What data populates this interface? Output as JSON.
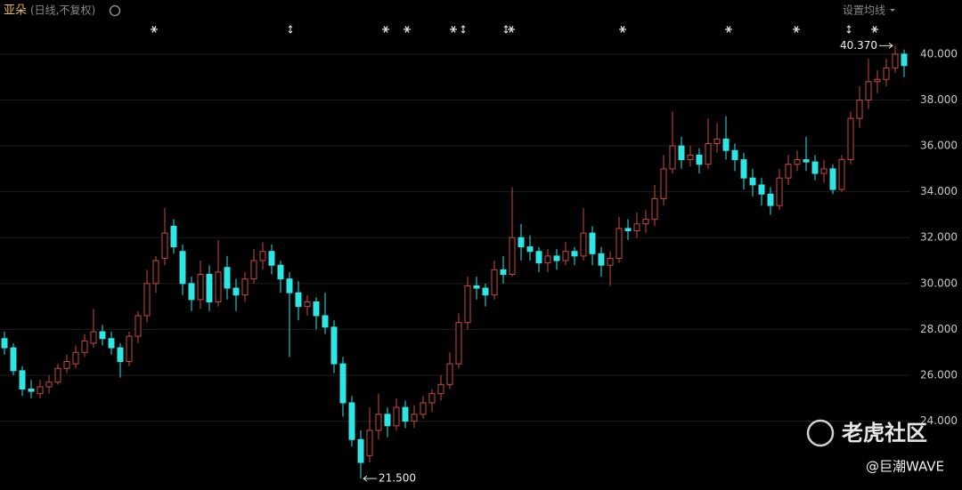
{
  "header": {
    "symbol": "亚朵",
    "mode": "(日线,不复权)",
    "ma_button": "设置均线"
  },
  "watermark": {
    "brand": "老虎社区",
    "author": "@巨潮WAVE"
  },
  "chart_data": {
    "type": "candlestick",
    "up_color": "#c9493f",
    "down_color": "#2ee6e6",
    "grid": true,
    "ylim": [
      21.0,
      42.36
    ],
    "yticks": [
      {
        "value": 24,
        "label": "24.000"
      },
      {
        "value": 26,
        "label": "26.000"
      },
      {
        "value": 28,
        "label": "28.000"
      },
      {
        "value": 30,
        "label": "30.000"
      },
      {
        "value": 32,
        "label": "32.000"
      },
      {
        "value": 34,
        "label": "34.000"
      },
      {
        "value": 36,
        "label": "36.000"
      },
      {
        "value": 38,
        "label": "38.000"
      },
      {
        "value": 40,
        "label": "40.000"
      }
    ],
    "high_marker": {
      "value": 40.37,
      "label": "40.370"
    },
    "low_marker": {
      "value": 21.5,
      "label": "21.500"
    },
    "ohlc": [
      [
        27.6,
        27.9,
        26.9,
        27.2
      ],
      [
        27.2,
        27.4,
        26.0,
        26.2
      ],
      [
        26.2,
        26.4,
        25.1,
        25.4
      ],
      [
        25.4,
        25.8,
        25.0,
        25.3
      ],
      [
        25.2,
        25.8,
        25.0,
        25.5
      ],
      [
        25.5,
        26.0,
        25.2,
        25.7
      ],
      [
        25.7,
        26.5,
        25.6,
        26.3
      ],
      [
        26.3,
        26.9,
        26.1,
        26.6
      ],
      [
        26.5,
        27.3,
        26.3,
        27.0
      ],
      [
        27.0,
        27.8,
        26.8,
        27.5
      ],
      [
        27.4,
        28.9,
        27.2,
        27.9
      ],
      [
        27.9,
        28.2,
        27.3,
        27.6
      ],
      [
        27.6,
        27.9,
        26.9,
        27.2
      ],
      [
        27.2,
        27.4,
        25.9,
        26.6
      ],
      [
        26.6,
        27.9,
        26.4,
        27.7
      ],
      [
        27.7,
        28.8,
        27.4,
        28.6
      ],
      [
        28.6,
        30.6,
        28.3,
        30.0
      ],
      [
        30.0,
        31.2,
        29.6,
        31.0
      ],
      [
        31.1,
        33.3,
        30.8,
        32.2
      ],
      [
        32.5,
        32.8,
        31.3,
        31.6
      ],
      [
        31.4,
        31.7,
        29.5,
        30.0
      ],
      [
        30.0,
        30.3,
        28.8,
        29.3
      ],
      [
        29.3,
        31.0,
        28.9,
        30.4
      ],
      [
        30.4,
        30.8,
        28.8,
        29.2
      ],
      [
        29.2,
        31.9,
        29.0,
        30.5
      ],
      [
        30.7,
        31.2,
        29.3,
        29.8
      ],
      [
        29.8,
        30.2,
        28.8,
        29.5
      ],
      [
        29.5,
        30.5,
        29.2,
        30.2
      ],
      [
        30.2,
        31.5,
        30.0,
        31.0
      ],
      [
        31.0,
        31.8,
        30.6,
        31.4
      ],
      [
        31.4,
        31.7,
        30.4,
        30.8
      ],
      [
        30.8,
        31.0,
        29.6,
        30.2
      ],
      [
        30.2,
        30.5,
        26.8,
        29.6
      ],
      [
        29.6,
        30.1,
        28.4,
        29.0
      ],
      [
        29.0,
        29.5,
        28.6,
        29.2
      ],
      [
        29.2,
        29.4,
        28.0,
        28.6
      ],
      [
        28.6,
        29.6,
        27.8,
        28.1
      ],
      [
        28.1,
        28.4,
        26.1,
        26.5
      ],
      [
        26.5,
        26.8,
        24.2,
        24.8
      ],
      [
        24.8,
        25.1,
        22.9,
        23.2
      ],
      [
        23.2,
        23.6,
        21.5,
        22.2
      ],
      [
        22.5,
        24.6,
        22.2,
        23.6
      ],
      [
        23.6,
        25.2,
        23.2,
        24.3
      ],
      [
        24.3,
        24.6,
        23.3,
        23.8
      ],
      [
        23.8,
        25.0,
        23.6,
        24.6
      ],
      [
        24.6,
        24.9,
        23.7,
        24.0
      ],
      [
        24.0,
        24.7,
        23.7,
        24.3
      ],
      [
        24.3,
        25.1,
        24.1,
        24.8
      ],
      [
        24.8,
        25.4,
        24.4,
        25.2
      ],
      [
        25.2,
        26.0,
        24.9,
        25.6
      ],
      [
        25.6,
        27.0,
        25.4,
        26.5
      ],
      [
        26.5,
        28.7,
        26.3,
        28.3
      ],
      [
        28.3,
        30.3,
        28.0,
        29.9
      ],
      [
        29.9,
        30.3,
        29.3,
        29.8
      ],
      [
        29.8,
        30.0,
        29.0,
        29.5
      ],
      [
        29.5,
        31.0,
        29.3,
        30.6
      ],
      [
        30.6,
        31.2,
        30.0,
        30.4
      ],
      [
        30.4,
        34.2,
        30.3,
        32.0
      ],
      [
        32.0,
        32.6,
        31.0,
        31.6
      ],
      [
        31.6,
        32.1,
        31.0,
        31.4
      ],
      [
        31.4,
        31.6,
        30.5,
        30.9
      ],
      [
        30.9,
        31.5,
        30.5,
        31.2
      ],
      [
        31.2,
        31.5,
        30.6,
        31.0
      ],
      [
        31.0,
        31.8,
        30.8,
        31.4
      ],
      [
        31.4,
        31.6,
        30.8,
        31.2
      ],
      [
        31.2,
        33.3,
        31.0,
        32.2
      ],
      [
        32.2,
        32.5,
        30.8,
        31.3
      ],
      [
        31.3,
        31.6,
        30.3,
        30.8
      ],
      [
        30.8,
        31.4,
        29.9,
        31.1
      ],
      [
        31.1,
        32.9,
        30.9,
        32.4
      ],
      [
        32.4,
        32.8,
        31.9,
        32.3
      ],
      [
        32.3,
        33.1,
        32.0,
        32.6
      ],
      [
        32.6,
        33.2,
        32.2,
        32.8
      ],
      [
        32.8,
        34.3,
        32.5,
        33.7
      ],
      [
        33.7,
        35.6,
        33.4,
        35.0
      ],
      [
        35.0,
        37.5,
        34.8,
        36.0
      ],
      [
        36.0,
        36.4,
        35.0,
        35.4
      ],
      [
        35.4,
        36.0,
        35.1,
        35.6
      ],
      [
        35.6,
        35.9,
        34.8,
        35.2
      ],
      [
        35.2,
        37.2,
        35.0,
        36.1
      ],
      [
        36.1,
        37.0,
        35.7,
        36.3
      ],
      [
        36.3,
        37.3,
        35.4,
        35.8
      ],
      [
        35.8,
        36.1,
        34.9,
        35.4
      ],
      [
        35.4,
        35.7,
        34.1,
        34.6
      ],
      [
        34.6,
        35.0,
        33.8,
        34.3
      ],
      [
        34.3,
        34.6,
        33.4,
        33.9
      ],
      [
        33.9,
        34.2,
        33.0,
        33.4
      ],
      [
        33.4,
        35.0,
        33.2,
        34.6
      ],
      [
        34.6,
        35.6,
        34.3,
        35.2
      ],
      [
        35.2,
        35.8,
        34.9,
        35.4
      ],
      [
        35.4,
        36.4,
        34.9,
        35.3
      ],
      [
        35.3,
        35.6,
        34.5,
        34.8
      ],
      [
        34.8,
        35.4,
        34.4,
        35.0
      ],
      [
        35.0,
        35.2,
        33.9,
        34.1
      ],
      [
        34.1,
        35.6,
        34.0,
        35.4
      ],
      [
        35.4,
        37.5,
        35.2,
        37.2
      ],
      [
        37.2,
        38.6,
        36.8,
        38.0
      ],
      [
        38.0,
        39.8,
        37.6,
        38.8
      ],
      [
        38.8,
        39.3,
        38.3,
        38.9
      ],
      [
        38.9,
        39.8,
        38.6,
        39.4
      ],
      [
        39.4,
        40.37,
        39.2,
        40.0
      ],
      [
        40.0,
        40.2,
        39.0,
        39.5
      ]
    ]
  }
}
